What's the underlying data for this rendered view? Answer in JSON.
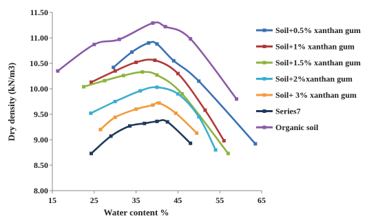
{
  "chart_data": {
    "type": "line",
    "xlabel": "Water content %",
    "ylabel": "Dry density (kN/m3)",
    "xlim": [
      15,
      65
    ],
    "ylim": [
      8.0,
      11.5
    ],
    "xticks": [
      "15",
      "25",
      "35",
      "45",
      "55",
      "65"
    ],
    "yticks": [
      "8.00",
      "8.50",
      "9.00",
      "9.50",
      "10.00",
      "10.50",
      "11.00",
      "11.50"
    ],
    "legend_position": "right",
    "grid": false,
    "series": [
      {
        "name": "Soil+0.5% xanthan gum",
        "color": "#3a6fb5",
        "x": [
          29.6,
          34,
          38,
          40,
          44,
          50,
          63.5
        ],
        "y": [
          10.42,
          10.72,
          10.9,
          10.88,
          10.55,
          10.15,
          8.92
        ]
      },
      {
        "name": "Soil+1% xanthan gum",
        "color": "#b23a3a",
        "x": [
          24.3,
          30,
          35,
          39.5,
          45,
          51.5,
          56
        ],
        "y": [
          10.13,
          10.35,
          10.52,
          10.56,
          10.3,
          9.58,
          8.98
        ]
      },
      {
        "name": "Soil+1.5% xanthan gum",
        "color": "#8cb43c",
        "x": [
          22.5,
          27.5,
          32,
          36.5,
          40,
          46,
          57
        ],
        "y": [
          10.04,
          10.16,
          10.26,
          10.33,
          10.27,
          9.9,
          8.73
        ]
      },
      {
        "name": "Soil+2%xanthan gum",
        "color": "#3aaed0",
        "x": [
          24.2,
          30,
          36,
          40,
          45,
          50,
          54
        ],
        "y": [
          9.52,
          9.75,
          9.96,
          10.03,
          9.9,
          9.45,
          8.8
        ]
      },
      {
        "name": "Soil+ 3% xanthan gum",
        "color": "#f39a3c",
        "x": [
          26.5,
          30,
          35,
          39,
          40.5,
          44.5,
          49.5
        ],
        "y": [
          9.2,
          9.44,
          9.6,
          9.68,
          9.72,
          9.52,
          9.13
        ]
      },
      {
        "name": "Series7",
        "color": "#1f3a5a",
        "x": [
          24.3,
          29,
          33.5,
          37,
          40,
          42.5,
          48
        ],
        "y": [
          8.73,
          9.07,
          9.27,
          9.32,
          9.36,
          9.35,
          8.93
        ]
      },
      {
        "name": "Organic soil",
        "color": "#8a5aa8",
        "x": [
          16.3,
          25,
          31,
          39,
          42,
          48,
          59
        ],
        "y": [
          10.35,
          10.87,
          10.97,
          11.29,
          11.22,
          10.98,
          9.8
        ]
      }
    ]
  }
}
